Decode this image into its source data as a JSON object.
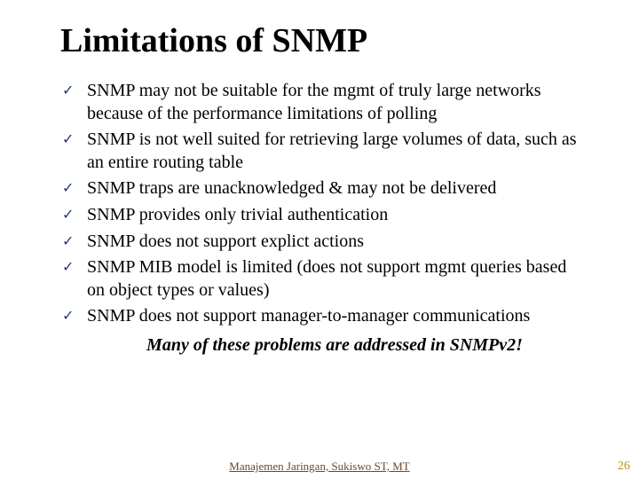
{
  "title": "Limitations of SNMP",
  "bullets": [
    "SNMP may not be suitable for the mgmt of truly large networks because of the performance limitations of polling",
    "SNMP is not well suited for retrieving large volumes of data, such as an entire routing table",
    "SNMP traps are unacknowledged & may not be delivered",
    "SNMP provides only trivial authentication",
    "SNMP does not support explict actions",
    "SNMP MIB model is limited (does not support mgmt queries based on object types or values)",
    "SNMP does not support manager-to-manager communications"
  ],
  "closing": "Many of these problems are addressed in SNMPv2!",
  "footer": "Manajemen Jaringan, Sukiswo ST, MT",
  "page_number": "26",
  "colors": {
    "title": "#000000",
    "body": "#000000",
    "check": "#1f3a6b",
    "footer": "#6b4a2a",
    "pagenum": "#c09020",
    "background": "#ffffff"
  },
  "check_glyph": "✓"
}
